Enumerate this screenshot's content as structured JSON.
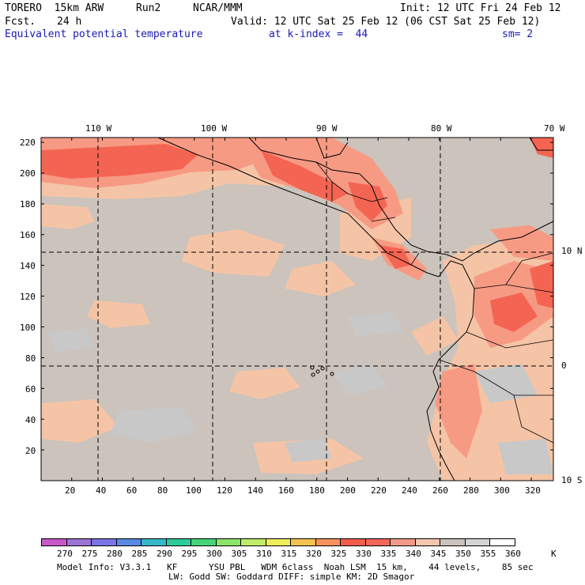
{
  "header": {
    "model": "TORERO  15km ARW",
    "run": "Run2",
    "org": "NCAR/MMM",
    "init": "Init: 12 UTC Fri 24 Feb 12",
    "fcst": "Fcst.",
    "fcst_hours": "24 h",
    "valid": "Valid: 12 UTC Sat 25 Feb 12 (06 CST Sat 25 Feb 12)",
    "field": "Equivalent potential temperature",
    "level": "at k-index =  44",
    "smoothing": "sm= 2"
  },
  "map": {
    "top_lon_labels": [
      "110 W",
      "100 W",
      "90 W",
      "80 W",
      "70 W"
    ],
    "right_lat_labels": [
      "10 N",
      "0",
      "10 S"
    ],
    "left_y_ticks": [
      "220",
      "200",
      "180",
      "160",
      "140",
      "120",
      "100",
      "80",
      "60",
      "40",
      "20"
    ],
    "bottom_x_ticks": [
      "20",
      "40",
      "60",
      "80",
      "100",
      "120",
      "140",
      "160",
      "180",
      "200",
      "220",
      "240",
      "260",
      "280",
      "300",
      "320"
    ],
    "colors": {
      "background": "#cbc3bc",
      "warm_light": "#f5c4a6",
      "warm_mid": "#f79a84",
      "warm_strong": "#f46452",
      "cool_grey": "#c8c8c8",
      "coast": "#000000"
    }
  },
  "colorbar": {
    "labels": [
      "270",
      "275",
      "280",
      "285",
      "290",
      "295",
      "300",
      "305",
      "310",
      "315",
      "320",
      "325",
      "330",
      "335",
      "340",
      "345",
      "350",
      "355",
      "360"
    ],
    "unit": "K",
    "colors": [
      "#c858c8",
      "#9a74d4",
      "#7a74e4",
      "#5a8ae4",
      "#34b8c8",
      "#2ccc9a",
      "#46d47a",
      "#8ae66a",
      "#c0ec6a",
      "#eeee5a",
      "#f6c250",
      "#f8925c",
      "#f25c4a",
      "#f2665a",
      "#f59a88",
      "#f5c6ae",
      "#cbc3bc",
      "#d4d4d4",
      "#ffffff"
    ]
  },
  "footer": {
    "line1": "Model Info: V3.3.1   KF      YSU PBL   WDM 6class  Noah LSM  15 km,    44 levels,    85 sec",
    "line2": "LW: Godd SW: Goddard DIFF: simple KM: 2D Smagor"
  }
}
